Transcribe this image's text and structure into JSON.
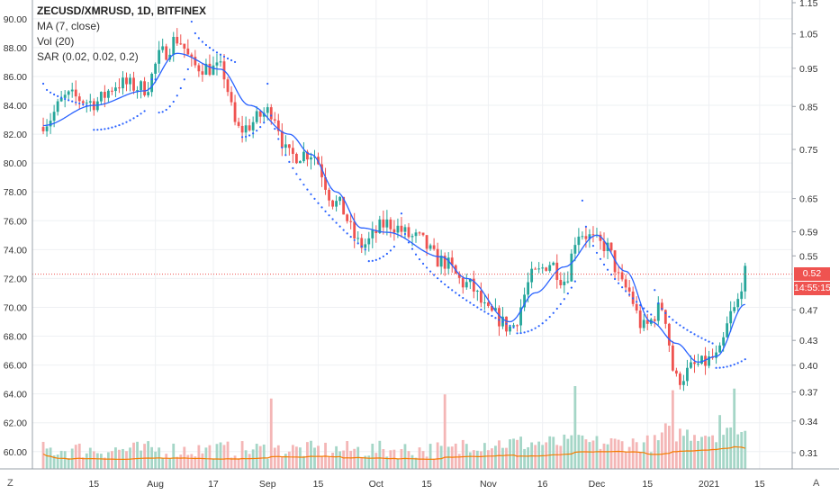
{
  "legend": {
    "symbol": "ZECUSD/XMRUSD, 1D, BITFINEX",
    "ma": "MA (7, close)",
    "vol": "Vol (20)",
    "sar": "SAR (0.02, 0.02, 0.2)"
  },
  "corner_left": "Z",
  "corner_right": "A",
  "last_price_label": "0.52",
  "countdown_label": "14:55:15",
  "colors": {
    "up": "#26a69a",
    "down": "#ef5350",
    "ma": "#2962ff",
    "sar": "#2962ff",
    "vol_ma": "#f57c00",
    "vol_up": "#a5d6c7",
    "vol_down": "#f4b6b6",
    "grid": "#eef0f3",
    "price_line": "#ef5350"
  },
  "chart_data": {
    "type": "candlestick",
    "left_axis": {
      "ticks": [
        "60.00",
        "62.00",
        "64.00",
        "66.00",
        "68.00",
        "70.00",
        "72.00",
        "74.00",
        "76.00",
        "78.00",
        "80.00",
        "82.00",
        "84.00",
        "86.00",
        "88.00",
        "90.00"
      ],
      "range": [
        58.8,
        91.3
      ]
    },
    "right_axis": {
      "scale": "log",
      "ticks": [
        "0.31",
        "0.34",
        "0.37",
        "0.40",
        "0.43",
        "0.47",
        "0.55",
        "0.59",
        "0.65",
        "0.75",
        "0.85",
        "0.95",
        "1.05",
        "1.15"
      ]
    },
    "x_axis": {
      "ticks": [
        "15",
        "Aug",
        "17",
        "Sep",
        "15",
        "Oct",
        "15",
        "Nov",
        "16",
        "Dec",
        "15",
        "2021",
        "15"
      ]
    },
    "last_price_level": 72.3,
    "ohlc_anchors": [
      {
        "date": "Jul 1",
        "close": 82.8
      },
      {
        "date": "Jul 8",
        "close": 84.6
      },
      {
        "date": "Jul 15",
        "close": 84.2
      },
      {
        "date": "Jul 22",
        "close": 85.5
      },
      {
        "date": "Jul 29",
        "close": 85.2
      },
      {
        "date": "Aug 3",
        "close": 87.6
      },
      {
        "date": "Aug 7",
        "close": 88.6
      },
      {
        "date": "Aug 12",
        "close": 86.7
      },
      {
        "date": "Aug 19",
        "close": 86.5
      },
      {
        "date": "Aug 24",
        "close": 82.3
      },
      {
        "date": "Sep 2",
        "close": 83.6
      },
      {
        "date": "Sep 7",
        "close": 80.5
      },
      {
        "date": "Sep 13",
        "close": 80.7
      },
      {
        "date": "Sep 20",
        "close": 77.2
      },
      {
        "date": "Sep 27",
        "close": 74.3
      },
      {
        "date": "Oct 4",
        "close": 75.8
      },
      {
        "date": "Oct 12",
        "close": 74.8
      },
      {
        "date": "Oct 19",
        "close": 73.2
      },
      {
        "date": "Oct 26",
        "close": 71.6
      },
      {
        "date": "Nov 2",
        "close": 69.5
      },
      {
        "date": "Nov 7",
        "close": 68.6
      },
      {
        "date": "Nov 14",
        "close": 72.3
      },
      {
        "date": "Nov 18",
        "close": 73.1
      },
      {
        "date": "Nov 22",
        "close": 71.9
      },
      {
        "date": "Nov 26",
        "close": 75.2
      },
      {
        "date": "Dec 3",
        "close": 74.3
      },
      {
        "date": "Dec 9",
        "close": 71.3
      },
      {
        "date": "Dec 14",
        "close": 68.6
      },
      {
        "date": "Dec 19",
        "close": 70.0
      },
      {
        "date": "Dec 23",
        "close": 65.0
      },
      {
        "date": "Dec 29",
        "close": 66.0
      },
      {
        "date": "Jan 3",
        "close": 66.5
      },
      {
        "date": "Jan 8",
        "close": 69.8
      },
      {
        "date": "Jan 11",
        "close": 72.3
      }
    ],
    "ma7_anchors": [
      {
        "date": "Jul 1",
        "value": 82.6
      },
      {
        "date": "Jul 15",
        "value": 84.0
      },
      {
        "date": "Jul 29",
        "value": 85.0
      },
      {
        "date": "Aug 7",
        "value": 87.6
      },
      {
        "date": "Aug 19",
        "value": 86.5
      },
      {
        "date": "Aug 27",
        "value": 84.0
      },
      {
        "date": "Sep 7",
        "value": 82.0
      },
      {
        "date": "Sep 13",
        "value": 80.6
      },
      {
        "date": "Sep 20",
        "value": 78.0
      },
      {
        "date": "Sep 27",
        "value": 75.5
      },
      {
        "date": "Oct 4",
        "value": 75.2
      },
      {
        "date": "Oct 19",
        "value": 73.5
      },
      {
        "date": "Oct 26",
        "value": 72.0
      },
      {
        "date": "Nov 7",
        "value": 69.0
      },
      {
        "date": "Nov 14",
        "value": 71.0
      },
      {
        "date": "Nov 22",
        "value": 72.8
      },
      {
        "date": "Dec 1",
        "value": 75.0
      },
      {
        "date": "Dec 9",
        "value": 72.5
      },
      {
        "date": "Dec 16",
        "value": 69.0
      },
      {
        "date": "Dec 23",
        "value": 67.5
      },
      {
        "date": "Dec 29",
        "value": 66.2
      },
      {
        "date": "Jan 3",
        "value": 66.6
      },
      {
        "date": "Jan 11",
        "value": 70.2
      }
    ],
    "sar_segments": [
      {
        "side": "above",
        "from": "Jul 1",
        "to": "Jul 13",
        "start": 85.5,
        "end": 84.0
      },
      {
        "side": "below",
        "from": "Jul 15",
        "to": "Jul 29",
        "start": 82.3,
        "end": 83.6
      },
      {
        "side": "above",
        "from": "Jul 31",
        "to": "Aug 1",
        "start": 85.8,
        "end": 85.8
      },
      {
        "side": "below",
        "from": "Aug 2",
        "to": "Aug 10",
        "start": 83.5,
        "end": 86.5
      },
      {
        "side": "above",
        "from": "Aug 11",
        "to": "Aug 23",
        "start": 89.8,
        "end": 87.0
      },
      {
        "side": "below",
        "from": "Aug 25",
        "to": "Aug 31",
        "start": 81.8,
        "end": 82.8
      },
      {
        "side": "above",
        "from": "Sep 1",
        "to": "Sep 28",
        "start": 85.5,
        "end": 74.0
      },
      {
        "side": "below",
        "from": "Sep 29",
        "to": "Oct 6",
        "start": 73.2,
        "end": 74.2
      },
      {
        "side": "above",
        "from": "Oct 8",
        "to": "Nov 8",
        "start": 76.5,
        "end": 68.6
      },
      {
        "side": "below",
        "from": "Nov 9",
        "to": "Nov 25",
        "start": 68.2,
        "end": 71.8
      },
      {
        "side": "above",
        "from": "Nov 27",
        "to": "Dec 16",
        "start": 77.4,
        "end": 69.5
      },
      {
        "side": "above",
        "from": "Dec 17",
        "to": "Jan 2",
        "start": 71.2,
        "end": 67.5
      },
      {
        "side": "below",
        "from": "Jan 3",
        "to": "Jan 11",
        "start": 65.8,
        "end": 66.4
      }
    ],
    "volume": {
      "relative_values_by_day": "bars scaled to a 0-1 band along the bottom, with spikes at Sep 2, Oct 20, Nov 25, Dec 22, Jan 8"
    }
  }
}
